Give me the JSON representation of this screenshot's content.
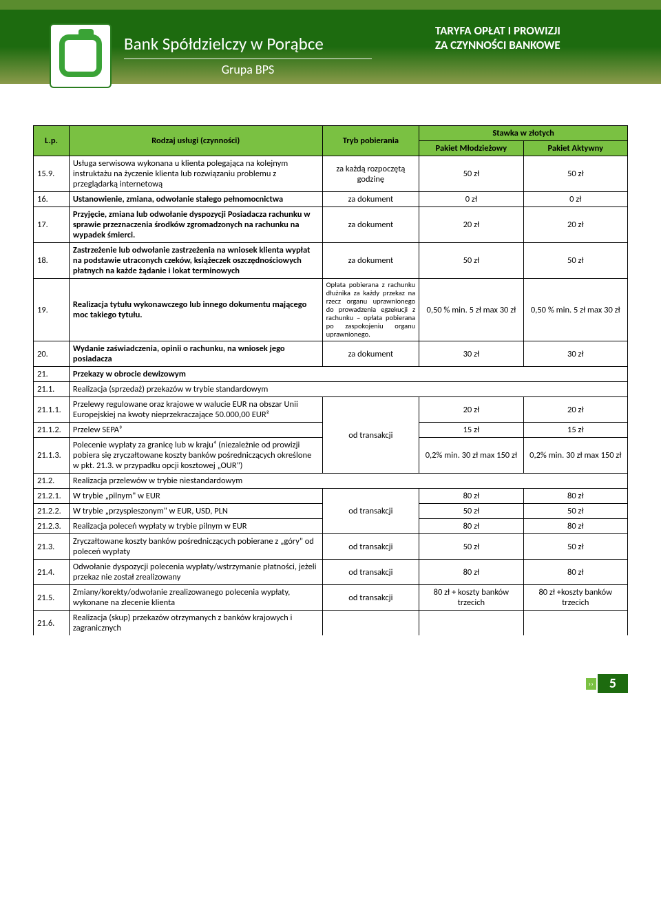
{
  "colors": {
    "header_green": "#7ac142",
    "dark_green": "#1d6b0f",
    "topbar": "#5a8c2e",
    "logo_green": "#3aa336",
    "border": "#000000",
    "white": "#ffffff"
  },
  "header": {
    "bank_name": "Bank Spółdzielczy w Porąbce",
    "group": "Grupa BPS",
    "tariff_line1": "TARYFA OPŁAT I PROWIZJI",
    "tariff_line2": "ZA CZYNNOŚCI BANKOWE"
  },
  "table": {
    "headers": {
      "lp": "L.p.",
      "name": "Rodzaj usługi  (czynności)",
      "mode": "Tryb pobierania",
      "rate_group": "Stawka w złotych",
      "pkg1": "Pakiet Młodzieżowy",
      "pkg2": "Pakiet Aktywny"
    },
    "rows": [
      {
        "lp": "15.9.",
        "name": "Usługa serwisowa wykonana u klienta polegająca na kolejnym instruktażu na życzenie klienta lub rozwiązaniu problemu z przeglądarką internetową",
        "mode": "za każdą rozpoczętą godzinę",
        "v1": "50 zł",
        "v2": "50 zł",
        "plain": true
      },
      {
        "lp": "16.",
        "name": "Ustanowienie, zmiana, odwołanie stałego pełnomocnictwa",
        "mode": "za dokument",
        "v1": "0 zł",
        "v2": "0 zł"
      },
      {
        "lp": "17.",
        "name": "Przyjęcie, zmiana lub odwołanie dyspozycji Posiadacza rachunku w sprawie przeznaczenia środków zgromadzonych na rachunku na wypadek śmierci.",
        "mode": "za dokument",
        "v1": "20 zł",
        "v2": "20 zł"
      },
      {
        "lp": "18.",
        "name": "Zastrzeżenie lub odwołanie zastrzeżenia na wniosek klienta wypłat na podstawie utraconych czeków, książeczek oszczędnościowych płatnych na każde żądanie i lokat terminowych",
        "mode": "za dokument",
        "v1": "50 zł",
        "v2": "50 zł"
      },
      {
        "lp": "19.",
        "name": "Realizacja tytułu wykonawczego lub innego dokumentu mającego moc takiego tytułu.",
        "mode": "Opłata pobierana z rachunku dłużnika za każdy przekaz na rzecz organu uprawnionego do prowadzenia egzekucji z rachunku – opłata pobierana po zaspokojeniu organu uprawnionego.",
        "small_mode": true,
        "v1": "0,50 % min. 5 zł max 30 zł",
        "v2": "0,50 % min. 5 zł max 30 zł"
      },
      {
        "lp": "20.",
        "name": "Wydanie zaświadczenia, opinii o rachunku, na wniosek jego posiadacza",
        "mode": "za dokument",
        "v1": "30 zł",
        "v2": "30 zł"
      },
      {
        "lp": "21.",
        "name": "Przekazy w obrocie dewizowym",
        "span": true
      },
      {
        "lp": "21.1.",
        "name": "Realizacja (sprzedaż) przekazów w trybie standardowym",
        "span": true,
        "plain": true
      },
      {
        "lp": "21.1.1.",
        "name": "Przelewy regulowane oraz krajowe w walucie EUR na obszar Unii Europejskiej na kwoty nieprzekraczające 50.000,00 EUR²",
        "mode_row": "a",
        "v1": "20 zł",
        "v2": "20 zł",
        "plain": true
      },
      {
        "lp": "21.1.2.",
        "name": "Przelew SEPA³",
        "mode_row": "a",
        "mode": "od transakcji",
        "v1": "15 zł",
        "v2": "15 zł",
        "plain": true
      },
      {
        "lp": "21.1.3.",
        "name": "Polecenie wypłaty za granicę lub w kraju⁴ (niezależnie od prowizji pobiera się zryczałtowane koszty banków pośredniczących określone w pkt. 21.3. w przypadku opcji kosztowej „OUR\")",
        "mode_row": "a",
        "v1": "0,2% min. 30 zł max 150 zł",
        "v2": "0,2% min. 30 zł max 150 zł",
        "plain": true
      },
      {
        "lp": "21.2.",
        "name": "Realizacja przelewów w trybie niestandardowym",
        "span": true,
        "plain": true
      },
      {
        "lp": "21.2.1.",
        "name": "W trybie „pilnym\" w EUR",
        "mode_row": "b",
        "v1": "80 zł",
        "v2": "80 zł",
        "plain": true
      },
      {
        "lp": "21.2.2.",
        "name": "W trybie „przyspieszonym\" w EUR, USD, PLN",
        "mode_row": "b",
        "mode": "od transakcji",
        "v1": "50 zł",
        "v2": "50 zł",
        "plain": true
      },
      {
        "lp": "21.2.3.",
        "name": "Realizacja poleceń wypłaty w trybie pilnym w EUR",
        "v1": "80 zł",
        "v2": "80 zł",
        "plain": true,
        "mode_row": "b"
      },
      {
        "lp": "21.3.",
        "name": "Zryczałtowane koszty banków pośredniczących pobierane z „góry\" od poleceń wypłaty",
        "mode": "od transakcji",
        "v1": "50 zł",
        "v2": "50 zł",
        "plain": true
      },
      {
        "lp": "21.4.",
        "name": "Odwołanie dyspozycji polecenia wypłaty/wstrzymanie płatności, jeżeli przekaz nie został zrealizowany",
        "mode": "od transakcji",
        "v1": "80 zł",
        "v2": "80 zł",
        "plain": true
      },
      {
        "lp": "21.5.",
        "name": "Zmiany/korekty/odwołanie zrealizowanego polecenia wypłaty, wykonane na zlecenie klienta",
        "mode": "od transakcji",
        "v1": "80 zł + koszty banków trzecich",
        "v2": "80 zł +koszty banków trzecich",
        "plain": true
      },
      {
        "lp": "21.6.",
        "name": "Realizacja (skup) przekazów otrzymanych z banków krajowych i zagranicznych",
        "open": true,
        "plain": true
      }
    ]
  },
  "page_number": "5"
}
